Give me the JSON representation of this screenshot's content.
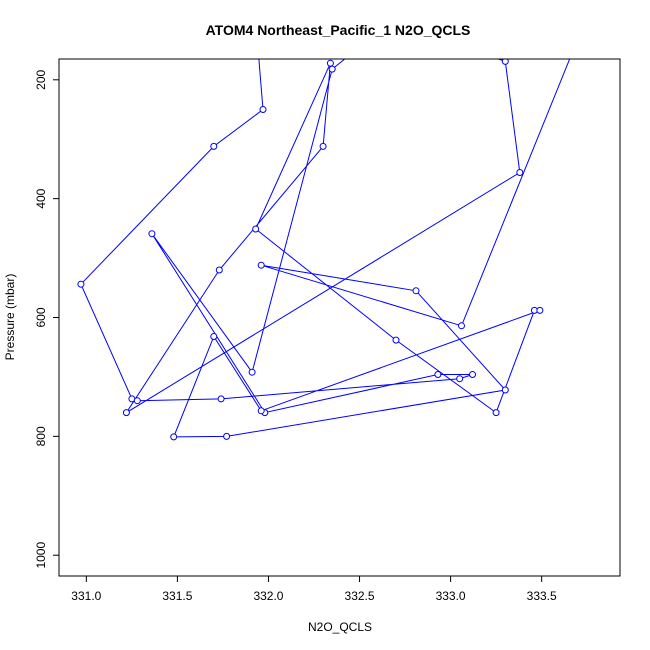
{
  "chart_data": {
    "type": "line",
    "title": "ATOM4 Northeast_Pacific_1 N2O_QCLS",
    "xlabel": "N2O_QCLS",
    "ylabel": "Pressure (mbar)",
    "xlim": [
      330.85,
      333.93
    ],
    "ylim": [
      1035,
      165
    ],
    "y_inverted": true,
    "x_ticks": [
      331.0,
      331.5,
      332.0,
      332.5,
      333.0,
      333.5
    ],
    "x_tick_labels": [
      "331.0",
      "331.5",
      "332.0",
      "332.5",
      "333.0",
      "333.5"
    ],
    "y_ticks": [
      200,
      400,
      600,
      800,
      1000
    ],
    "y_tick_labels": [
      "200",
      "400",
      "600",
      "800",
      "1000"
    ],
    "grid": false,
    "series": [
      {
        "color": "#0000ff",
        "marker": "open-circle",
        "x": [
          331.93,
          331.97,
          331.7,
          330.97,
          331.25,
          331.28,
          331.74,
          333.05,
          333.12,
          332.93,
          331.98,
          331.36,
          331.91,
          332.35,
          332.5,
          332.72,
          333.12,
          333.3,
          333.38,
          331.22,
          331.73,
          332.3,
          332.34,
          331.93,
          332.7,
          333.25,
          333.46,
          333.49,
          331.96,
          331.7,
          331.48,
          331.77,
          333.3,
          332.81,
          331.96,
          333.06,
          333.68
        ],
        "y": [
          100,
          250,
          312,
          544,
          737,
          740,
          737,
          703,
          696,
          696,
          760,
          459,
          692,
          182,
          145,
          120,
          150,
          169,
          356,
          760,
          520,
          312,
          172,
          451,
          638,
          760,
          588,
          588,
          757,
          632,
          801,
          800,
          722,
          555,
          512,
          614,
          145
        ]
      }
    ]
  }
}
